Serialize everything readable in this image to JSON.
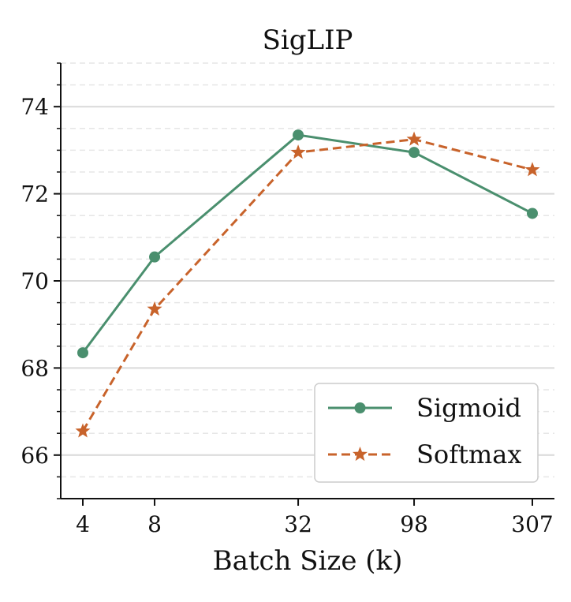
{
  "chart_data": {
    "type": "line",
    "title": "SigLIP",
    "xlabel": "Batch Size (k)",
    "ylabel": "",
    "categories": [
      "4",
      "8",
      "32",
      "98",
      "307"
    ],
    "x": [
      4,
      8,
      32,
      98,
      307
    ],
    "ylim": [
      65,
      75
    ],
    "yticks": [
      66,
      68,
      70,
      72,
      74
    ],
    "grid": true,
    "legend_position": "bottom-right",
    "series": [
      {
        "name": "Sigmoid",
        "values": [
          68.35,
          70.55,
          73.35,
          72.95,
          71.55
        ],
        "color": "#4a8f6e",
        "marker": "circle",
        "linestyle": "solid"
      },
      {
        "name": "Softmax",
        "values": [
          66.55,
          69.35,
          72.95,
          73.25,
          72.55
        ],
        "color": "#c8632b",
        "marker": "star",
        "linestyle": "dashed"
      }
    ]
  }
}
